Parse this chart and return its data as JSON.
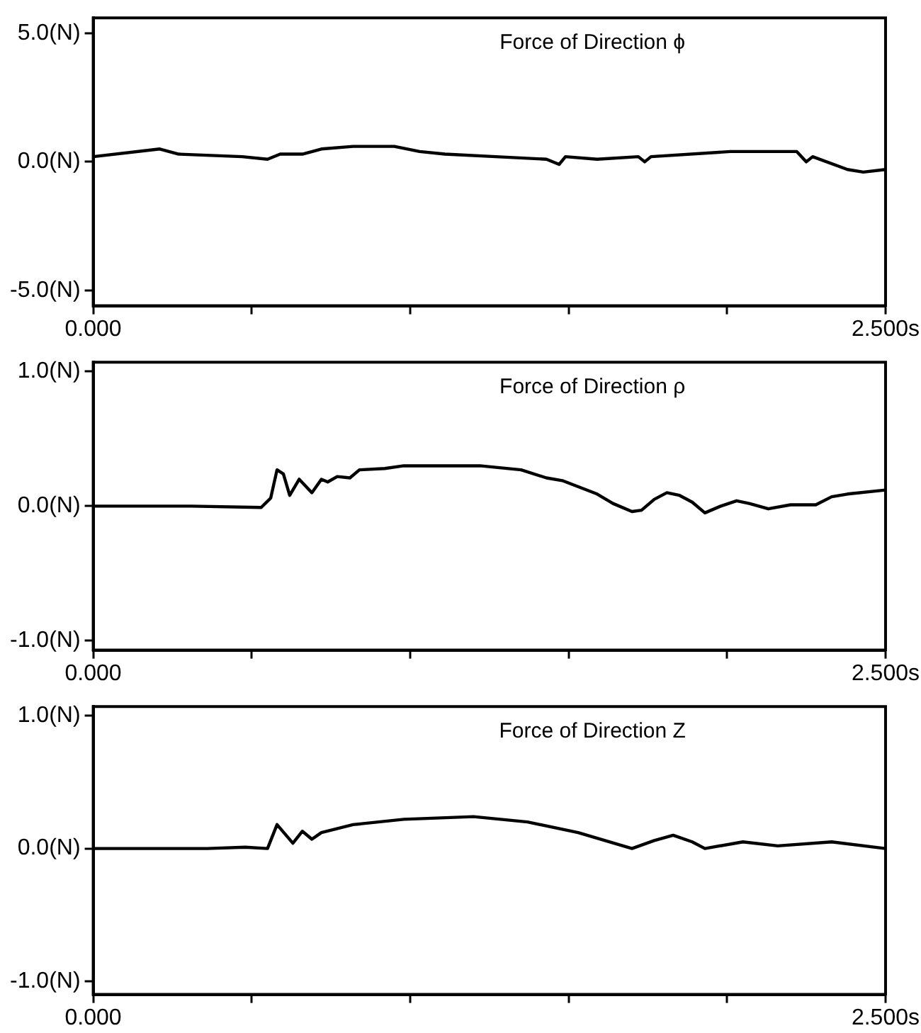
{
  "chart_data": [
    {
      "type": "line",
      "title": "Force of Direction ϕ",
      "xlim": [
        0,
        2.5
      ],
      "ylim": [
        -5.6,
        5.6
      ],
      "xticks": [
        {
          "value": 0,
          "label": "0.000"
        },
        {
          "value": 0.5,
          "label": null
        },
        {
          "value": 1,
          "label": null
        },
        {
          "value": 1.5,
          "label": null
        },
        {
          "value": 2,
          "label": null
        },
        {
          "value": 2.5,
          "label": "2.500s"
        }
      ],
      "yticks": [
        {
          "value": -5,
          "label": "-5.0(N)"
        },
        {
          "value": 0,
          "label": "0.0(N)"
        },
        {
          "value": 5,
          "label": "5.0(N)"
        }
      ],
      "grid": false,
      "legend": false,
      "marker": "none",
      "line_style": "solid",
      "series": [
        {
          "color": "#000000",
          "x": [
            0,
            0.21,
            0.27,
            0.47,
            0.55,
            0.59,
            0.66,
            0.72,
            0.82,
            0.95,
            1.03,
            1.11,
            1.27,
            1.43,
            1.47,
            1.49,
            1.59,
            1.72,
            1.74,
            1.76,
            2.01,
            2.22,
            2.25,
            2.27,
            2.38,
            2.43,
            2.5
          ],
          "values": [
            0.2,
            0.5,
            0.3,
            0.2,
            0.1,
            0.3,
            0.3,
            0.5,
            0.6,
            0.6,
            0.4,
            0.3,
            0.2,
            0.1,
            -0.1,
            0.2,
            0.1,
            0.2,
            0.0,
            0.2,
            0.4,
            0.4,
            0.0,
            0.2,
            -0.3,
            -0.4,
            -0.3
          ]
        }
      ]
    },
    {
      "type": "line",
      "title": "Force of Direction ρ",
      "xlim": [
        0,
        2.5
      ],
      "ylim": [
        -1.07,
        1.07
      ],
      "xticks": [
        {
          "value": 0,
          "label": "0.000"
        },
        {
          "value": 0.5,
          "label": null
        },
        {
          "value": 1,
          "label": null
        },
        {
          "value": 1.5,
          "label": null
        },
        {
          "value": 2,
          "label": null
        },
        {
          "value": 2.5,
          "label": "2.500s"
        }
      ],
      "yticks": [
        {
          "value": -1,
          "label": "-1.0(N)"
        },
        {
          "value": 0,
          "label": "0.0(N)"
        },
        {
          "value": 1,
          "label": "1.0(N)"
        }
      ],
      "grid": false,
      "legend": false,
      "marker": "none",
      "line_style": "solid",
      "series": [
        {
          "color": "#000000",
          "x": [
            0,
            0.31,
            0.53,
            0.56,
            0.58,
            0.6,
            0.62,
            0.65,
            0.69,
            0.72,
            0.74,
            0.77,
            0.81,
            0.84,
            0.92,
            0.98,
            1.11,
            1.22,
            1.35,
            1.43,
            1.48,
            1.59,
            1.64,
            1.7,
            1.73,
            1.77,
            1.81,
            1.85,
            1.89,
            1.93,
            1.98,
            2.03,
            2.07,
            2.13,
            2.2,
            2.28,
            2.33,
            2.38,
            2.5
          ],
          "values": [
            0.0,
            0.0,
            -0.01,
            0.06,
            0.27,
            0.24,
            0.08,
            0.2,
            0.1,
            0.2,
            0.18,
            0.22,
            0.21,
            0.27,
            0.28,
            0.3,
            0.3,
            0.3,
            0.27,
            0.21,
            0.19,
            0.09,
            0.02,
            -0.04,
            -0.03,
            0.05,
            0.1,
            0.08,
            0.03,
            -0.05,
            0.0,
            0.04,
            0.02,
            -0.02,
            0.01,
            0.01,
            0.07,
            0.09,
            0.12
          ]
        }
      ]
    },
    {
      "type": "line",
      "title": "Force of Direction Z",
      "xlim": [
        0,
        2.5
      ],
      "ylim": [
        -1.1,
        1.07
      ],
      "xticks": [
        {
          "value": 0,
          "label": "0.000"
        },
        {
          "value": 0.5,
          "label": null
        },
        {
          "value": 1,
          "label": null
        },
        {
          "value": 1.5,
          "label": null
        },
        {
          "value": 2,
          "label": null
        },
        {
          "value": 2.5,
          "label": "2.500s"
        }
      ],
      "yticks": [
        {
          "value": -1,
          "label": "-1.0(N)"
        },
        {
          "value": 0,
          "label": "0.0(N)"
        },
        {
          "value": 1,
          "label": "1.0(N)"
        }
      ],
      "grid": false,
      "legend": false,
      "marker": "none",
      "line_style": "solid",
      "series": [
        {
          "color": "#000000",
          "x": [
            0,
            0.36,
            0.48,
            0.55,
            0.58,
            0.63,
            0.66,
            0.69,
            0.72,
            0.82,
            0.98,
            1.2,
            1.37,
            1.53,
            1.7,
            1.77,
            1.83,
            1.89,
            1.93,
            2.05,
            2.16,
            2.33,
            2.5
          ],
          "values": [
            0.0,
            0.0,
            0.01,
            0.0,
            0.18,
            0.04,
            0.13,
            0.07,
            0.12,
            0.18,
            0.22,
            0.24,
            0.2,
            0.12,
            0.0,
            0.06,
            0.1,
            0.05,
            0.0,
            0.05,
            0.02,
            0.05,
            0.0
          ]
        }
      ]
    }
  ]
}
